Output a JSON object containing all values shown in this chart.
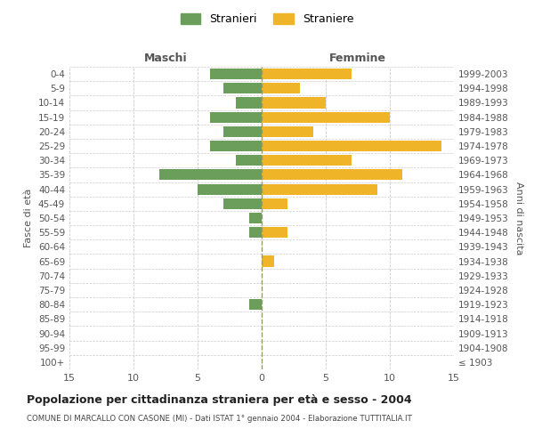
{
  "age_groups": [
    "100+",
    "95-99",
    "90-94",
    "85-89",
    "80-84",
    "75-79",
    "70-74",
    "65-69",
    "60-64",
    "55-59",
    "50-54",
    "45-49",
    "40-44",
    "35-39",
    "30-34",
    "25-29",
    "20-24",
    "15-19",
    "10-14",
    "5-9",
    "0-4"
  ],
  "birth_years": [
    "≤ 1903",
    "1904-1908",
    "1909-1913",
    "1914-1918",
    "1919-1923",
    "1924-1928",
    "1929-1933",
    "1934-1938",
    "1939-1943",
    "1944-1948",
    "1949-1953",
    "1954-1958",
    "1959-1963",
    "1964-1968",
    "1969-1973",
    "1974-1978",
    "1979-1983",
    "1984-1988",
    "1989-1993",
    "1994-1998",
    "1999-2003"
  ],
  "maschi": [
    0,
    0,
    0,
    0,
    1,
    0,
    0,
    0,
    0,
    1,
    1,
    3,
    5,
    8,
    2,
    4,
    3,
    4,
    2,
    3,
    4
  ],
  "femmine": [
    0,
    0,
    0,
    0,
    0,
    0,
    0,
    1,
    0,
    2,
    0,
    2,
    9,
    11,
    7,
    14,
    4,
    10,
    5,
    3,
    7
  ],
  "maschi_color": "#6a9e5a",
  "femmine_color": "#f0b429",
  "title": "Popolazione per cittadinanza straniera per età e sesso - 2004",
  "subtitle": "COMUNE DI MARCALLO CON CASONE (MI) - Dati ISTAT 1° gennaio 2004 - Elaborazione TUTTITALIA.IT",
  "ylabel_left": "Fasce di età",
  "ylabel_right": "Anni di nascita",
  "xlabel_left": "Maschi",
  "xlabel_right": "Femmine",
  "legend_maschi": "Stranieri",
  "legend_femmine": "Straniere",
  "xlim": 15,
  "background_color": "#ffffff",
  "grid_color": "#cccccc",
  "bar_height": 0.75
}
